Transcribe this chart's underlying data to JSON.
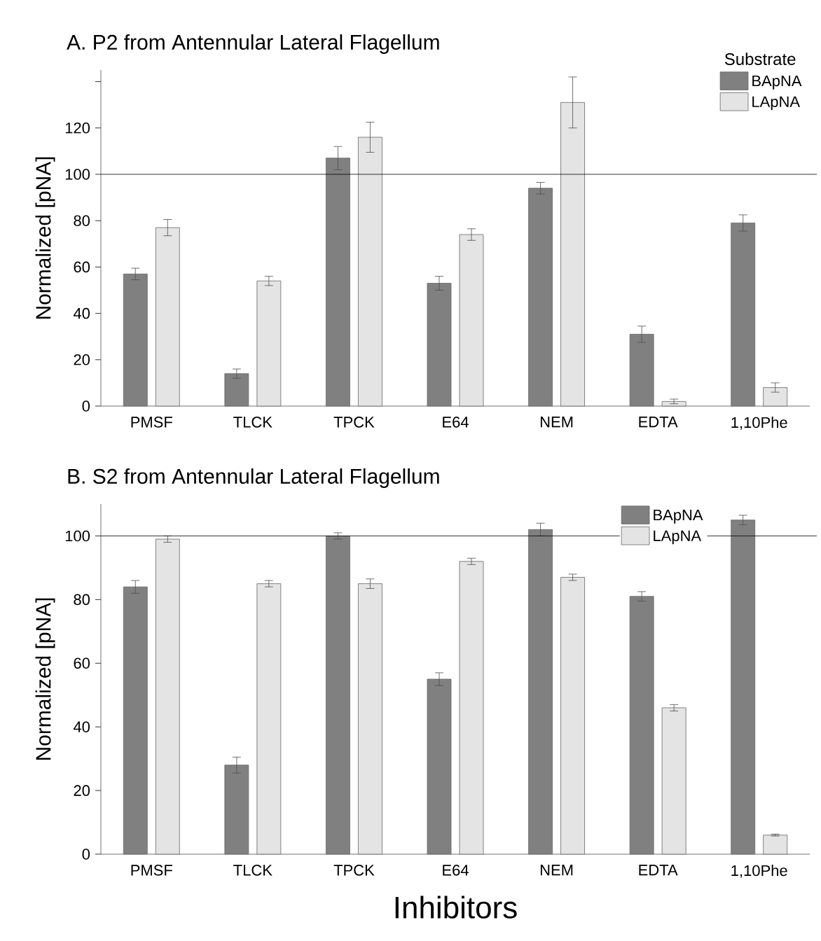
{
  "chart_data": [
    {
      "type": "bar",
      "title": "A. P2 from Antennular Lateral Flagellum",
      "ylabel": "Normalized [pNA]",
      "legend_title": "Substrate",
      "categories": [
        "PMSF",
        "TLCK",
        "TPCK",
        "E64",
        "NEM",
        "EDTA",
        "1,10Phe"
      ],
      "series": [
        {
          "name": "BApNA",
          "color": "#808080",
          "values": [
            57,
            14,
            107,
            53,
            94,
            31,
            79
          ],
          "errors": [
            2.5,
            2,
            5,
            3,
            2.5,
            3.5,
            3.5
          ]
        },
        {
          "name": "LApNA",
          "color": "#e4e4e4",
          "values": [
            77,
            54,
            116,
            74,
            131,
            2,
            8
          ],
          "errors": [
            3.5,
            2,
            6.5,
            2.5,
            11,
            1,
            2
          ]
        }
      ],
      "ylim": [
        0,
        145
      ],
      "yticks": [
        0,
        20,
        40,
        60,
        80,
        100,
        120,
        {
          "value": 140,
          "label": null
        }
      ],
      "ref_lines": [
        {
          "axis": "y",
          "value": 100
        }
      ],
      "grid": false,
      "legend": "top right"
    },
    {
      "type": "bar",
      "title": "B. S2 from Antennular Lateral Flagellum",
      "xlabel": "Inhibitors",
      "ylabel": "Normalized [pNA]",
      "categories": [
        "PMSF",
        "TLCK",
        "TPCK",
        "E64",
        "NEM",
        "EDTA",
        "1,10Phe"
      ],
      "series": [
        {
          "name": "BApNA",
          "color": "#808080",
          "values": [
            84,
            28,
            100,
            55,
            102,
            81,
            105
          ],
          "errors": [
            2,
            2.5,
            1,
            2,
            2,
            1.5,
            1.5
          ]
        },
        {
          "name": "LApNA",
          "color": "#e4e4e4",
          "values": [
            99,
            85,
            85,
            92,
            87,
            46,
            6
          ],
          "errors": [
            1,
            1,
            1.5,
            1,
            1,
            1,
            0.3
          ]
        }
      ],
      "ylim": [
        0,
        110
      ],
      "yticks": [
        0,
        20,
        40,
        60,
        80,
        100
      ],
      "ref_lines": [
        {
          "axis": "y",
          "value": 100
        }
      ],
      "grid": false,
      "legend": "top right"
    }
  ]
}
